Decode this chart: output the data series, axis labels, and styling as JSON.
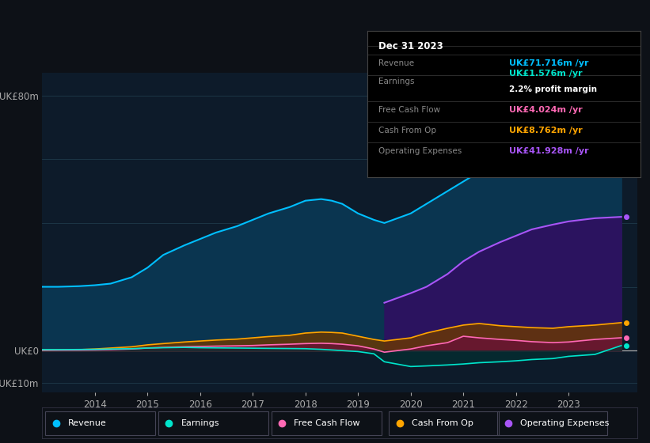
{
  "bg_color": "#0d1117",
  "plot_bg_color": "#0d1b2a",
  "grid_color": "#1e3a4a",
  "title_date": "Dec 31 2023",
  "info_box": {
    "Revenue": {
      "label": "Revenue",
      "value": "UK£71.716m /yr",
      "color": "#00bfff"
    },
    "Earnings": {
      "label": "Earnings",
      "value": "UK£1.576m /yr",
      "color": "#00e5cc"
    },
    "profit_margin": {
      "label": "",
      "value": "2.2% profit margin",
      "color": "#ffffff"
    },
    "Free Cash Flow": {
      "label": "Free Cash Flow",
      "value": "UK£4.024m /yr",
      "color": "#ff69b4"
    },
    "Cash From Op": {
      "label": "Cash From Op",
      "value": "UK£8.762m /yr",
      "color": "#ffa500"
    },
    "Operating Expenses": {
      "label": "Operating Expenses",
      "value": "UK£41.928m /yr",
      "color": "#a855f7"
    }
  },
  "years": [
    2013.0,
    2013.3,
    2013.7,
    2014.0,
    2014.3,
    2014.7,
    2015.0,
    2015.3,
    2015.7,
    2016.0,
    2016.3,
    2016.7,
    2017.0,
    2017.3,
    2017.7,
    2018.0,
    2018.3,
    2018.5,
    2018.7,
    2019.0,
    2019.3,
    2019.5,
    2020.0,
    2020.3,
    2020.7,
    2021.0,
    2021.3,
    2021.7,
    2022.0,
    2022.3,
    2022.7,
    2023.0,
    2023.5,
    2024.0
  ],
  "revenue": [
    20,
    20,
    20.2,
    20.5,
    21,
    23,
    26,
    30,
    33,
    35,
    37,
    39,
    41,
    43,
    45,
    47,
    47.5,
    47,
    46,
    43,
    41,
    40,
    43,
    46,
    50,
    53,
    56,
    59,
    62,
    65,
    67,
    69,
    71,
    71.716
  ],
  "earnings": [
    0.3,
    0.3,
    0.35,
    0.4,
    0.5,
    0.6,
    0.8,
    0.9,
    1.0,
    0.9,
    0.85,
    0.8,
    0.75,
    0.7,
    0.65,
    0.6,
    0.4,
    0.2,
    0.0,
    -0.3,
    -1.0,
    -3.5,
    -5.0,
    -4.8,
    -4.5,
    -4.2,
    -3.8,
    -3.5,
    -3.2,
    -2.8,
    -2.5,
    -1.8,
    -1.2,
    1.576
  ],
  "free_cash_flow": [
    0.1,
    0.12,
    0.15,
    0.2,
    0.3,
    0.5,
    0.8,
    1.0,
    1.2,
    1.3,
    1.4,
    1.5,
    1.6,
    1.8,
    2.0,
    2.2,
    2.3,
    2.2,
    2.0,
    1.5,
    0.5,
    -0.5,
    0.5,
    1.5,
    2.5,
    4.5,
    4.0,
    3.5,
    3.2,
    2.8,
    2.5,
    2.7,
    3.5,
    4.024
  ],
  "cash_from_op": [
    0.2,
    0.25,
    0.3,
    0.5,
    0.8,
    1.2,
    1.8,
    2.2,
    2.7,
    3.0,
    3.3,
    3.6,
    4.0,
    4.4,
    4.8,
    5.5,
    5.8,
    5.7,
    5.5,
    4.5,
    3.5,
    3.0,
    4.0,
    5.5,
    7.0,
    8.0,
    8.5,
    7.8,
    7.5,
    7.2,
    7.0,
    7.5,
    8.0,
    8.762
  ],
  "op_expenses": [
    null,
    null,
    null,
    null,
    null,
    null,
    null,
    null,
    null,
    null,
    null,
    null,
    null,
    null,
    null,
    null,
    null,
    null,
    null,
    null,
    null,
    15.0,
    18.0,
    20.0,
    24.0,
    28.0,
    31.0,
    34.0,
    36.0,
    38.0,
    39.5,
    40.5,
    41.5,
    41.928
  ],
  "ylim": [
    -13,
    87
  ],
  "ytick_positions": [
    -10,
    0,
    80
  ],
  "ytick_labels": [
    "-UK£10m",
    "UK£0",
    "UK£80m"
  ],
  "grid_positions": [
    -10,
    0,
    20,
    40,
    60,
    80
  ],
  "xlim": [
    2013.0,
    2024.3
  ],
  "xtick_vals": [
    2014,
    2015,
    2016,
    2017,
    2018,
    2019,
    2020,
    2021,
    2022,
    2023
  ],
  "revenue_color": "#00bfff",
  "revenue_fill": "#0a3550",
  "earnings_color": "#00e5cc",
  "earnings_fill": "#003333",
  "fcf_color": "#ff69b4",
  "fcf_fill": "#6b0f3a",
  "cashop_color": "#ffa500",
  "cashop_fill": "#6b3800",
  "opex_color": "#a855f7",
  "opex_fill": "#2d1260",
  "legend_items": [
    {
      "label": "Revenue",
      "color": "#00bfff"
    },
    {
      "label": "Earnings",
      "color": "#00e5cc"
    },
    {
      "label": "Free Cash Flow",
      "color": "#ff69b4"
    },
    {
      "label": "Cash From Op",
      "color": "#ffa500"
    },
    {
      "label": "Operating Expenses",
      "color": "#a855f7"
    }
  ]
}
